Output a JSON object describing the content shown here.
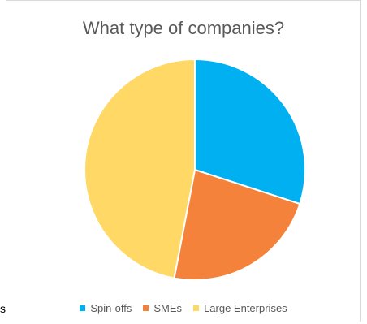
{
  "side_text": "s",
  "chart_data": {
    "type": "pie",
    "title": "What type of companies?",
    "categories": [
      "Spin-offs",
      "SMEs",
      "Large Enterprises"
    ],
    "values": [
      30,
      23,
      47
    ],
    "colors": [
      "#00b0f0",
      "#f4823a",
      "#ffd866"
    ],
    "legend_position": "bottom"
  }
}
